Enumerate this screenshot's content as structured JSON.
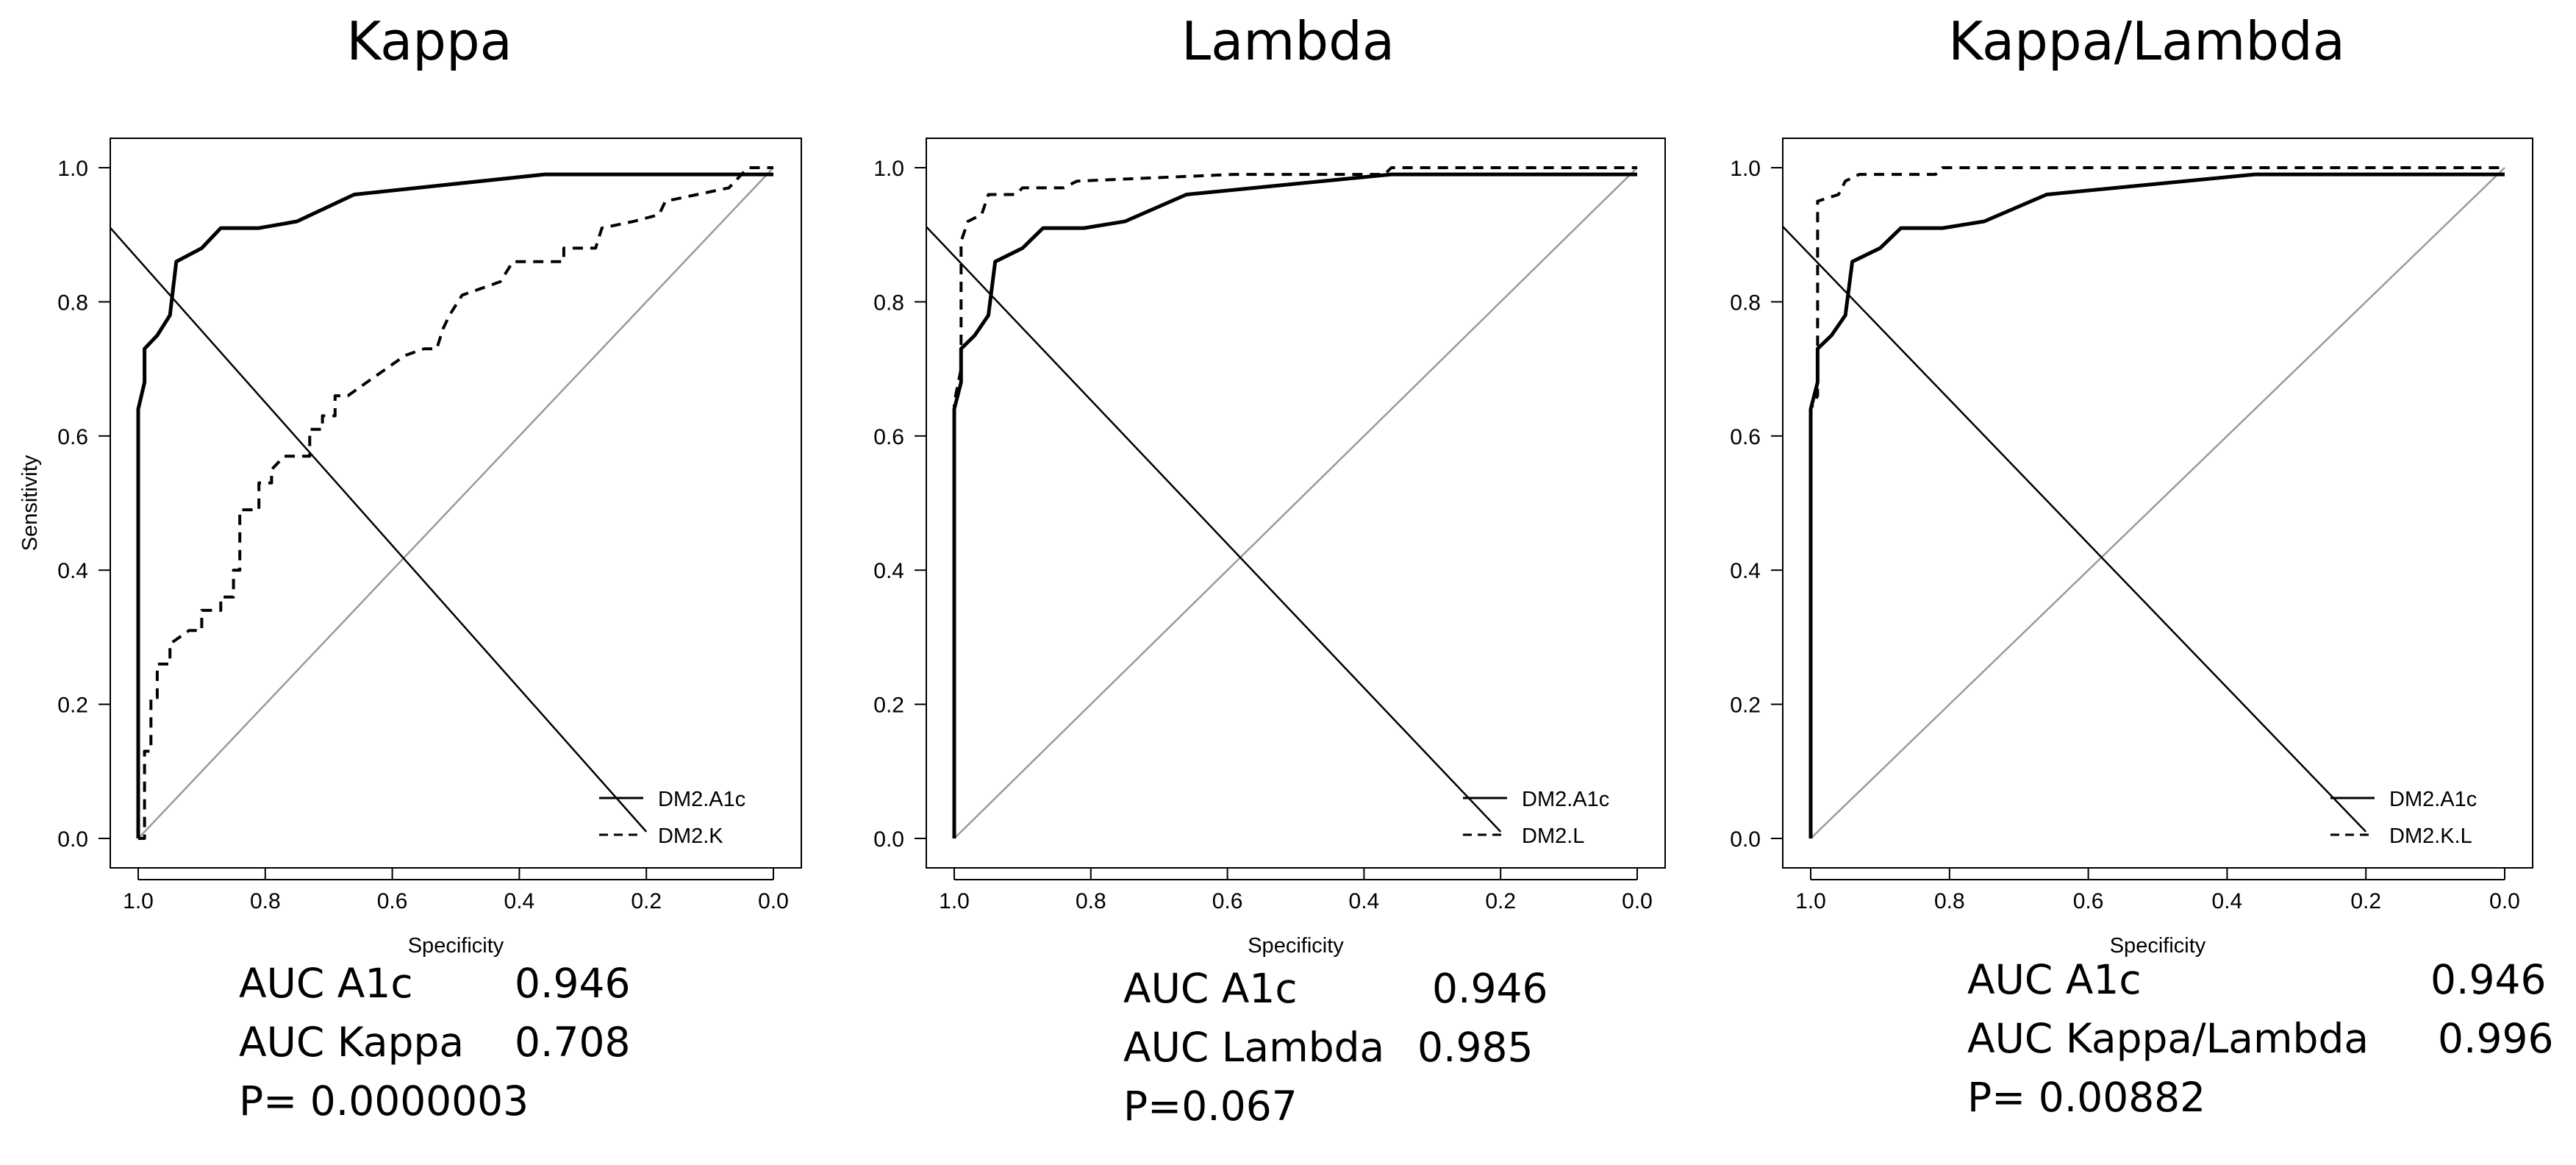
{
  "chart_data": [
    {
      "type": "line",
      "title": "Kappa",
      "xlabel": "Specificity",
      "ylabel": "Sensitivity",
      "xlim": [
        1.0,
        0.0
      ],
      "ylim": [
        0.0,
        1.0
      ],
      "xticks": [
        "1.0",
        "0.8",
        "0.6",
        "0.4",
        "0.2",
        "0.0"
      ],
      "yticks": [
        "0.0",
        "0.2",
        "0.4",
        "0.6",
        "0.8",
        "1.0"
      ],
      "legend": [
        "DM2.A1c",
        "DM2.K"
      ],
      "series": [
        {
          "name": "DM2.A1c",
          "style": "solid",
          "points": [
            [
              1.0,
              0.0
            ],
            [
              1.0,
              0.64
            ],
            [
              0.99,
              0.68
            ],
            [
              0.99,
              0.73
            ],
            [
              0.97,
              0.75
            ],
            [
              0.95,
              0.78
            ],
            [
              0.94,
              0.86
            ],
            [
              0.9,
              0.88
            ],
            [
              0.87,
              0.91
            ],
            [
              0.81,
              0.91
            ],
            [
              0.75,
              0.92
            ],
            [
              0.66,
              0.96
            ],
            [
              0.36,
              0.99
            ],
            [
              0.0,
              0.99
            ]
          ]
        },
        {
          "name": "DM2.K",
          "style": "dashed",
          "points": [
            [
              1.0,
              0.0
            ],
            [
              0.99,
              0.0
            ],
            [
              0.99,
              0.13
            ],
            [
              0.98,
              0.13
            ],
            [
              0.98,
              0.21
            ],
            [
              0.97,
              0.21
            ],
            [
              0.97,
              0.26
            ],
            [
              0.95,
              0.26
            ],
            [
              0.95,
              0.29
            ],
            [
              0.92,
              0.31
            ],
            [
              0.9,
              0.31
            ],
            [
              0.9,
              0.34
            ],
            [
              0.87,
              0.34
            ],
            [
              0.87,
              0.36
            ],
            [
              0.85,
              0.36
            ],
            [
              0.85,
              0.4
            ],
            [
              0.84,
              0.4
            ],
            [
              0.84,
              0.49
            ],
            [
              0.81,
              0.49
            ],
            [
              0.81,
              0.53
            ],
            [
              0.79,
              0.53
            ],
            [
              0.79,
              0.55
            ],
            [
              0.77,
              0.57
            ],
            [
              0.73,
              0.57
            ],
            [
              0.73,
              0.61
            ],
            [
              0.71,
              0.61
            ],
            [
              0.71,
              0.63
            ],
            [
              0.69,
              0.63
            ],
            [
              0.69,
              0.66
            ],
            [
              0.67,
              0.66
            ],
            [
              0.64,
              0.68
            ],
            [
              0.61,
              0.7
            ],
            [
              0.58,
              0.72
            ],
            [
              0.55,
              0.73
            ],
            [
              0.53,
              0.73
            ],
            [
              0.52,
              0.76
            ],
            [
              0.51,
              0.78
            ],
            [
              0.49,
              0.81
            ],
            [
              0.46,
              0.82
            ],
            [
              0.43,
              0.83
            ],
            [
              0.41,
              0.86
            ],
            [
              0.33,
              0.86
            ],
            [
              0.33,
              0.88
            ],
            [
              0.28,
              0.88
            ],
            [
              0.27,
              0.91
            ],
            [
              0.22,
              0.92
            ],
            [
              0.18,
              0.93
            ],
            [
              0.17,
              0.95
            ],
            [
              0.12,
              0.96
            ],
            [
              0.07,
              0.97
            ],
            [
              0.06,
              0.98
            ],
            [
              0.05,
              0.99
            ],
            [
              0.04,
              1.0
            ],
            [
              0.0,
              1.0
            ]
          ]
        }
      ],
      "stats": {
        "auc_a1c_label": "AUC A1c",
        "auc_a1c": "0.946",
        "auc_other_label": "AUC Kappa",
        "auc_other": "0.708",
        "p_value": "P= 0.0000003"
      }
    },
    {
      "type": "line",
      "title": "Lambda",
      "xlabel": "Specificity",
      "ylabel": "Sensitivity",
      "xlim": [
        1.0,
        0.0
      ],
      "ylim": [
        0.0,
        1.0
      ],
      "xticks": [
        "1.0",
        "0.8",
        "0.6",
        "0.4",
        "0.2",
        "0.0"
      ],
      "yticks": [
        "0.0",
        "0.2",
        "0.4",
        "0.6",
        "0.8",
        "1.0"
      ],
      "legend": [
        "DM2.A1c",
        "DM2.L"
      ],
      "series": [
        {
          "name": "DM2.A1c",
          "style": "solid",
          "points": [
            [
              1.0,
              0.0
            ],
            [
              1.0,
              0.64
            ],
            [
              0.99,
              0.68
            ],
            [
              0.99,
              0.73
            ],
            [
              0.97,
              0.75
            ],
            [
              0.95,
              0.78
            ],
            [
              0.94,
              0.86
            ],
            [
              0.9,
              0.88
            ],
            [
              0.87,
              0.91
            ],
            [
              0.81,
              0.91
            ],
            [
              0.75,
              0.92
            ],
            [
              0.66,
              0.96
            ],
            [
              0.36,
              0.99
            ],
            [
              0.0,
              0.99
            ]
          ]
        },
        {
          "name": "DM2.L",
          "style": "dashed",
          "points": [
            [
              1.0,
              0.0
            ],
            [
              1.0,
              0.65
            ],
            [
              0.99,
              0.7
            ],
            [
              0.99,
              0.89
            ],
            [
              0.98,
              0.92
            ],
            [
              0.96,
              0.93
            ],
            [
              0.95,
              0.96
            ],
            [
              0.91,
              0.96
            ],
            [
              0.9,
              0.97
            ],
            [
              0.84,
              0.97
            ],
            [
              0.82,
              0.98
            ],
            [
              0.59,
              0.99
            ],
            [
              0.37,
              0.99
            ],
            [
              0.36,
              1.0
            ],
            [
              0.0,
              1.0
            ]
          ]
        }
      ],
      "stats": {
        "auc_a1c_label": "AUC A1c",
        "auc_a1c": "0.946",
        "auc_other_label": "AUC Lambda",
        "auc_other": "0.985",
        "p_value": "P=0.067"
      }
    },
    {
      "type": "line",
      "title": "Kappa/Lambda",
      "xlabel": "Specificity",
      "ylabel": "Sensitivity",
      "xlim": [
        1.0,
        0.0
      ],
      "ylim": [
        0.0,
        1.0
      ],
      "xticks": [
        "1.0",
        "0.8",
        "0.6",
        "0.4",
        "0.2",
        "0.0"
      ],
      "yticks": [
        "0.0",
        "0.2",
        "0.4",
        "0.6",
        "0.8",
        "1.0"
      ],
      "legend": [
        "DM2.A1c",
        "DM2.K.L"
      ],
      "series": [
        {
          "name": "DM2.A1c",
          "style": "solid",
          "points": [
            [
              1.0,
              0.0
            ],
            [
              1.0,
              0.64
            ],
            [
              0.99,
              0.68
            ],
            [
              0.99,
              0.73
            ],
            [
              0.97,
              0.75
            ],
            [
              0.95,
              0.78
            ],
            [
              0.94,
              0.86
            ],
            [
              0.9,
              0.88
            ],
            [
              0.87,
              0.91
            ],
            [
              0.81,
              0.91
            ],
            [
              0.75,
              0.92
            ],
            [
              0.66,
              0.96
            ],
            [
              0.36,
              0.99
            ],
            [
              0.0,
              0.99
            ]
          ]
        },
        {
          "name": "DM2.K.L",
          "style": "dashed",
          "points": [
            [
              1.0,
              0.0
            ],
            [
              1.0,
              0.64
            ],
            [
              0.99,
              0.66
            ],
            [
              0.99,
              0.95
            ],
            [
              0.96,
              0.96
            ],
            [
              0.95,
              0.98
            ],
            [
              0.93,
              0.99
            ],
            [
              0.82,
              0.99
            ],
            [
              0.81,
              1.0
            ],
            [
              0.0,
              1.0
            ]
          ]
        }
      ],
      "stats": {
        "auc_a1c_label": "AUC A1c",
        "auc_a1c": "0.946",
        "auc_other_label": "AUC Kappa/Lambda",
        "auc_other": "0.996",
        "p_value": "P= 0.00882"
      }
    }
  ]
}
